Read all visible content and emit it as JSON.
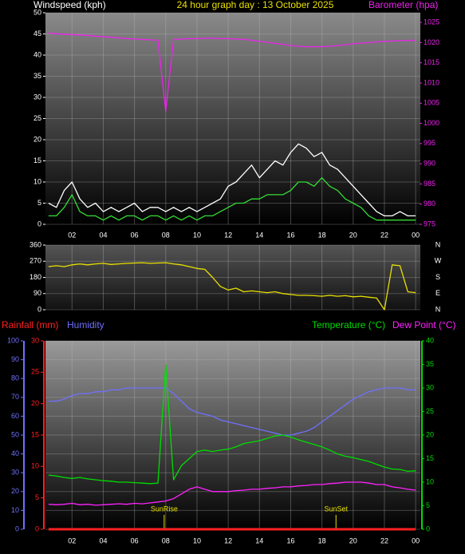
{
  "chart_data": [
    {
      "type": "line",
      "title": "24 hour graph day : 13 October 2025",
      "ylabel": "Windspeed (kph)",
      "y2label": "Barometer (hpa)",
      "x": [
        0.5,
        1,
        1.5,
        2,
        2.5,
        3,
        3.5,
        4,
        4.5,
        5,
        5.5,
        6,
        6.5,
        7,
        7.5,
        8,
        8.5,
        9,
        9.5,
        10,
        10.5,
        11,
        11.5,
        12,
        12.5,
        13,
        13.5,
        14,
        14.5,
        15,
        15.5,
        16,
        16.5,
        17,
        17.5,
        18,
        18.5,
        19,
        19.5,
        20,
        20.5,
        21,
        21.5,
        22,
        22.5,
        23,
        23.5,
        24
      ],
      "xlim": [
        0.3,
        24.3
      ],
      "xticks": [
        {
          "value": 2,
          "label": "02"
        },
        {
          "value": 4,
          "label": "04"
        },
        {
          "value": 6,
          "label": "06"
        },
        {
          "value": 8,
          "label": "08"
        },
        {
          "value": 10,
          "label": "10"
        },
        12,
        14,
        16,
        18,
        20,
        22,
        {
          "value": 24,
          "label": "00"
        }
      ],
      "ylim": [
        0,
        50
      ],
      "yticks": [
        0,
        5,
        10,
        15,
        20,
        25,
        30,
        35,
        40,
        45,
        50
      ],
      "y2lim": [
        975,
        1027.4
      ],
      "y2ticks": [
        975,
        980,
        985,
        990,
        995,
        1000,
        1005,
        1010,
        1015,
        1020,
        1025
      ],
      "grid": true,
      "axis_colors": {
        "y": "#ffffff",
        "y2": "#ee22ee"
      },
      "series": [
        {
          "color": "#ffffff",
          "values": [
            5,
            4,
            8,
            10,
            6,
            4,
            5,
            3,
            4,
            3,
            4,
            5,
            3,
            4,
            4,
            3,
            4,
            3,
            4,
            3,
            4,
            5,
            6,
            9,
            10,
            12,
            14,
            11,
            13,
            15,
            14,
            17,
            19,
            18,
            16,
            17,
            14,
            13,
            11,
            9,
            7,
            5,
            3,
            2,
            2,
            3,
            2,
            2
          ]
        },
        {
          "color": "#33dd33",
          "values": [
            2,
            2,
            4,
            7,
            3,
            2,
            2,
            1,
            2,
            1,
            2,
            2,
            1,
            2,
            2,
            1,
            2,
            1,
            2,
            1,
            2,
            2,
            3,
            4,
            5,
            5,
            6,
            6,
            7,
            7,
            7,
            8,
            10,
            10,
            9,
            11,
            9,
            8,
            6,
            5,
            4,
            2,
            1,
            1,
            1,
            1,
            1,
            1
          ]
        },
        {
          "color": "#ee22ee",
          "axis": "y2",
          "values": [
            1022.4,
            1022.2,
            1022.1,
            1022,
            1021.9,
            1021.8,
            1021.6,
            1021.5,
            1021.3,
            1021.2,
            1021,
            1020.9,
            1020.8,
            1020.7,
            1020.6,
            1003,
            1020.8,
            1020.9,
            1021,
            1021,
            1021.1,
            1021.1,
            1021,
            1021,
            1020.9,
            1020.8,
            1020.6,
            1020.3,
            1020.1,
            1019.8,
            1019.6,
            1019.3,
            1019.1,
            1019,
            1019,
            1019,
            1019.1,
            1019.3,
            1019.5,
            1019.7,
            1019.9,
            1020,
            1020.2,
            1020.3,
            1020.4,
            1020.5,
            1020.5,
            1020.6
          ]
        }
      ]
    },
    {
      "type": "line",
      "x": [
        0.5,
        1,
        1.5,
        2,
        2.5,
        3,
        3.5,
        4,
        4.5,
        5,
        5.5,
        6,
        6.5,
        7,
        7.5,
        8,
        8.5,
        9,
        9.5,
        10,
        10.5,
        11,
        11.5,
        12,
        12.5,
        13,
        13.5,
        14,
        14.5,
        15,
        15.5,
        16,
        16.5,
        17,
        17.5,
        18,
        18.5,
        19,
        19.5,
        20,
        20.5,
        21,
        21.5,
        22,
        22.5,
        23,
        23.5,
        24
      ],
      "xlim": [
        0.3,
        24.3
      ],
      "xticks": [
        {
          "value": 2,
          "label": "02"
        },
        {
          "value": 4,
          "label": "04"
        },
        {
          "value": 6,
          "label": "06"
        },
        {
          "value": 8,
          "label": "08"
        },
        {
          "value": 10,
          "label": "10"
        },
        12,
        14,
        16,
        18,
        20,
        22,
        {
          "value": 24,
          "label": "00"
        }
      ],
      "ylim": [
        0,
        360
      ],
      "yticks": [
        0,
        90,
        180,
        270,
        360
      ],
      "compass": [
        "N",
        "W",
        "S",
        "E",
        "N"
      ],
      "grid": true,
      "axis_colors": {
        "y": "#ffffff"
      },
      "series": [
        {
          "color": "#e8e000",
          "values": [
            240,
            245,
            240,
            250,
            255,
            250,
            255,
            258,
            252,
            255,
            258,
            260,
            262,
            258,
            260,
            262,
            255,
            250,
            240,
            230,
            225,
            180,
            130,
            110,
            120,
            100,
            105,
            100,
            95,
            100,
            90,
            85,
            80,
            80,
            78,
            75,
            80,
            75,
            78,
            72,
            75,
            70,
            65,
            0,
            250,
            245,
            100,
            95
          ]
        }
      ]
    },
    {
      "type": "line",
      "x": [
        0.5,
        1,
        1.5,
        2,
        2.5,
        3,
        3.5,
        4,
        4.5,
        5,
        5.5,
        6,
        6.5,
        7,
        7.5,
        8,
        8.5,
        9,
        9.5,
        10,
        10.5,
        11,
        11.5,
        12,
        12.5,
        13,
        13.5,
        14,
        14.5,
        15,
        15.5,
        16,
        16.5,
        17,
        17.5,
        18,
        18.5,
        19,
        19.5,
        20,
        20.5,
        21,
        21.5,
        22,
        22.5,
        23,
        23.5,
        24
      ],
      "xlim": [
        0.3,
        24.3
      ],
      "xticks": [
        {
          "value": 2,
          "label": "02"
        },
        {
          "value": 4,
          "label": "04"
        },
        {
          "value": 6,
          "label": "06"
        },
        {
          "value": 8,
          "label": "08"
        },
        {
          "value": 10,
          "label": "10"
        },
        12,
        14,
        16,
        18,
        20,
        22,
        {
          "value": 24,
          "label": "00"
        }
      ],
      "ylim": [
        0,
        100
      ],
      "yticks": [
        0,
        10,
        20,
        30,
        40,
        50,
        60,
        70,
        80,
        90,
        100
      ],
      "y2lim": [
        0,
        40
      ],
      "y2ticks": [
        0,
        5,
        10,
        15,
        20,
        25,
        30,
        35,
        40
      ],
      "y3lim": [
        0,
        30
      ],
      "y3ticks": [
        0,
        5,
        10,
        15,
        20,
        25,
        30
      ],
      "grid": true,
      "axis_colors": {
        "y": "#7070ff",
        "y2": "#00dd00",
        "y3": "#ff2020"
      },
      "markers": [
        {
          "label": "SunRise",
          "x": 7.9
        },
        {
          "label": "SunSet",
          "x": 18.9
        }
      ],
      "series": [
        {
          "name": "Rainfall (mm)",
          "color": "#ff2020",
          "axis": "y3",
          "values": [
            0,
            0,
            0,
            0,
            0,
            0,
            0,
            0,
            0,
            0,
            0,
            0,
            0,
            0,
            0,
            0,
            0,
            0,
            0,
            0,
            0,
            0,
            0,
            0,
            0,
            0,
            0,
            0,
            0,
            0,
            0,
            0,
            0,
            0,
            0,
            0,
            0,
            0,
            0,
            0,
            0,
            0,
            0,
            0,
            0,
            0,
            0,
            0
          ]
        },
        {
          "name": "Humidity",
          "color": "#7070ff",
          "values": [
            68,
            68,
            69,
            71,
            72,
            72,
            73,
            73,
            74,
            74,
            75,
            75,
            75,
            75,
            75,
            75,
            72,
            68,
            64,
            62,
            61,
            60,
            58,
            57,
            56,
            55,
            54,
            53,
            52,
            51,
            50,
            50,
            51,
            52,
            54,
            57,
            60,
            63,
            66,
            69,
            71,
            73,
            74,
            75,
            75,
            75,
            74,
            74
          ]
        },
        {
          "name": "Temperature (°C)",
          "color": "#00dd00",
          "axis": "y2",
          "values": [
            11.5,
            11.3,
            11,
            10.8,
            11,
            10.7,
            10.5,
            10.3,
            10.2,
            10,
            10,
            9.9,
            9.8,
            9.7,
            9.8,
            35,
            10.5,
            13.5,
            15,
            16.5,
            16.8,
            16.5,
            16.8,
            17,
            17.5,
            18.2,
            18.5,
            18.8,
            19.3,
            19.8,
            20,
            19.6,
            19,
            18.5,
            18,
            17.5,
            16.8,
            16,
            15.5,
            15.2,
            14.8,
            14.4,
            13.8,
            13.2,
            12.8,
            12.7,
            12.3,
            12.4
          ]
        },
        {
          "name": "Dew Point (°C)",
          "color": "#ff22ff",
          "axis": "y2",
          "values": [
            5.3,
            5.2,
            5.3,
            5.5,
            5.2,
            5.3,
            5.1,
            5.2,
            5.3,
            5.4,
            5.3,
            5.5,
            5.4,
            5.6,
            5.8,
            6,
            6.5,
            7.5,
            8.5,
            9,
            8.5,
            8,
            8,
            8,
            8.2,
            8.3,
            8.5,
            8.5,
            8.7,
            8.8,
            9,
            9,
            9.2,
            9.3,
            9.5,
            9.5,
            9.7,
            9.8,
            10,
            10,
            10,
            9.8,
            9.5,
            9.5,
            9,
            8.8,
            8.5,
            8.3
          ]
        }
      ]
    }
  ]
}
